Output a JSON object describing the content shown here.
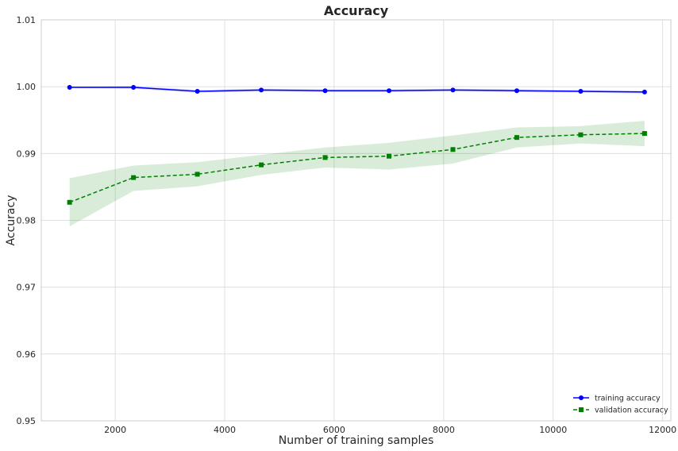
{
  "chart_data": {
    "type": "line",
    "title": "Accuracy",
    "xlabel": "Number of training samples",
    "ylabel": "Accuracy",
    "xlim": [
      650,
      12150
    ],
    "ylim": [
      0.95,
      1.01
    ],
    "xticks": [
      2000,
      4000,
      6000,
      8000,
      10000,
      12000
    ],
    "yticks": [
      0.95,
      0.96,
      0.97,
      0.98,
      0.99,
      1.0,
      1.01
    ],
    "ytick_labels": [
      "0.95",
      "0.96",
      "0.97",
      "0.98",
      "0.99",
      "1.00",
      "1.01"
    ],
    "grid": true,
    "legend_position": "lower-right",
    "x": [
      1167,
      2334,
      3501,
      4668,
      5835,
      7002,
      8169,
      9336,
      10503,
      11670
    ],
    "series": [
      {
        "name": "training accuracy",
        "color": "#0000ff",
        "marker": "circle",
        "linestyle": "solid",
        "values": [
          0.9999,
          0.9999,
          0.9993,
          0.9995,
          0.9994,
          0.9994,
          0.9995,
          0.9994,
          0.9993,
          0.9992
        ],
        "std_lower": [
          0.9998,
          0.9997,
          0.9991,
          0.9993,
          0.9992,
          0.9992,
          0.9993,
          0.9992,
          0.9991,
          0.999
        ],
        "std_upper": [
          1.0,
          1.0001,
          0.9995,
          0.9997,
          0.9996,
          0.9996,
          0.9997,
          0.9996,
          0.9995,
          0.9994
        ],
        "band_color": "#0000ff"
      },
      {
        "name": "validation accuracy",
        "color": "#008000",
        "marker": "square",
        "linestyle": "dashed",
        "values": [
          0.9827,
          0.9864,
          0.9869,
          0.9883,
          0.9894,
          0.9896,
          0.9906,
          0.9924,
          0.9928,
          0.993
        ],
        "std_lower": [
          0.9791,
          0.9844,
          0.9851,
          0.9868,
          0.9879,
          0.9876,
          0.9885,
          0.9909,
          0.9915,
          0.9911
        ],
        "std_upper": [
          0.9863,
          0.9882,
          0.9887,
          0.9898,
          0.9909,
          0.9916,
          0.9927,
          0.9939,
          0.9941,
          0.9949
        ],
        "band_color": "#008000"
      }
    ]
  }
}
